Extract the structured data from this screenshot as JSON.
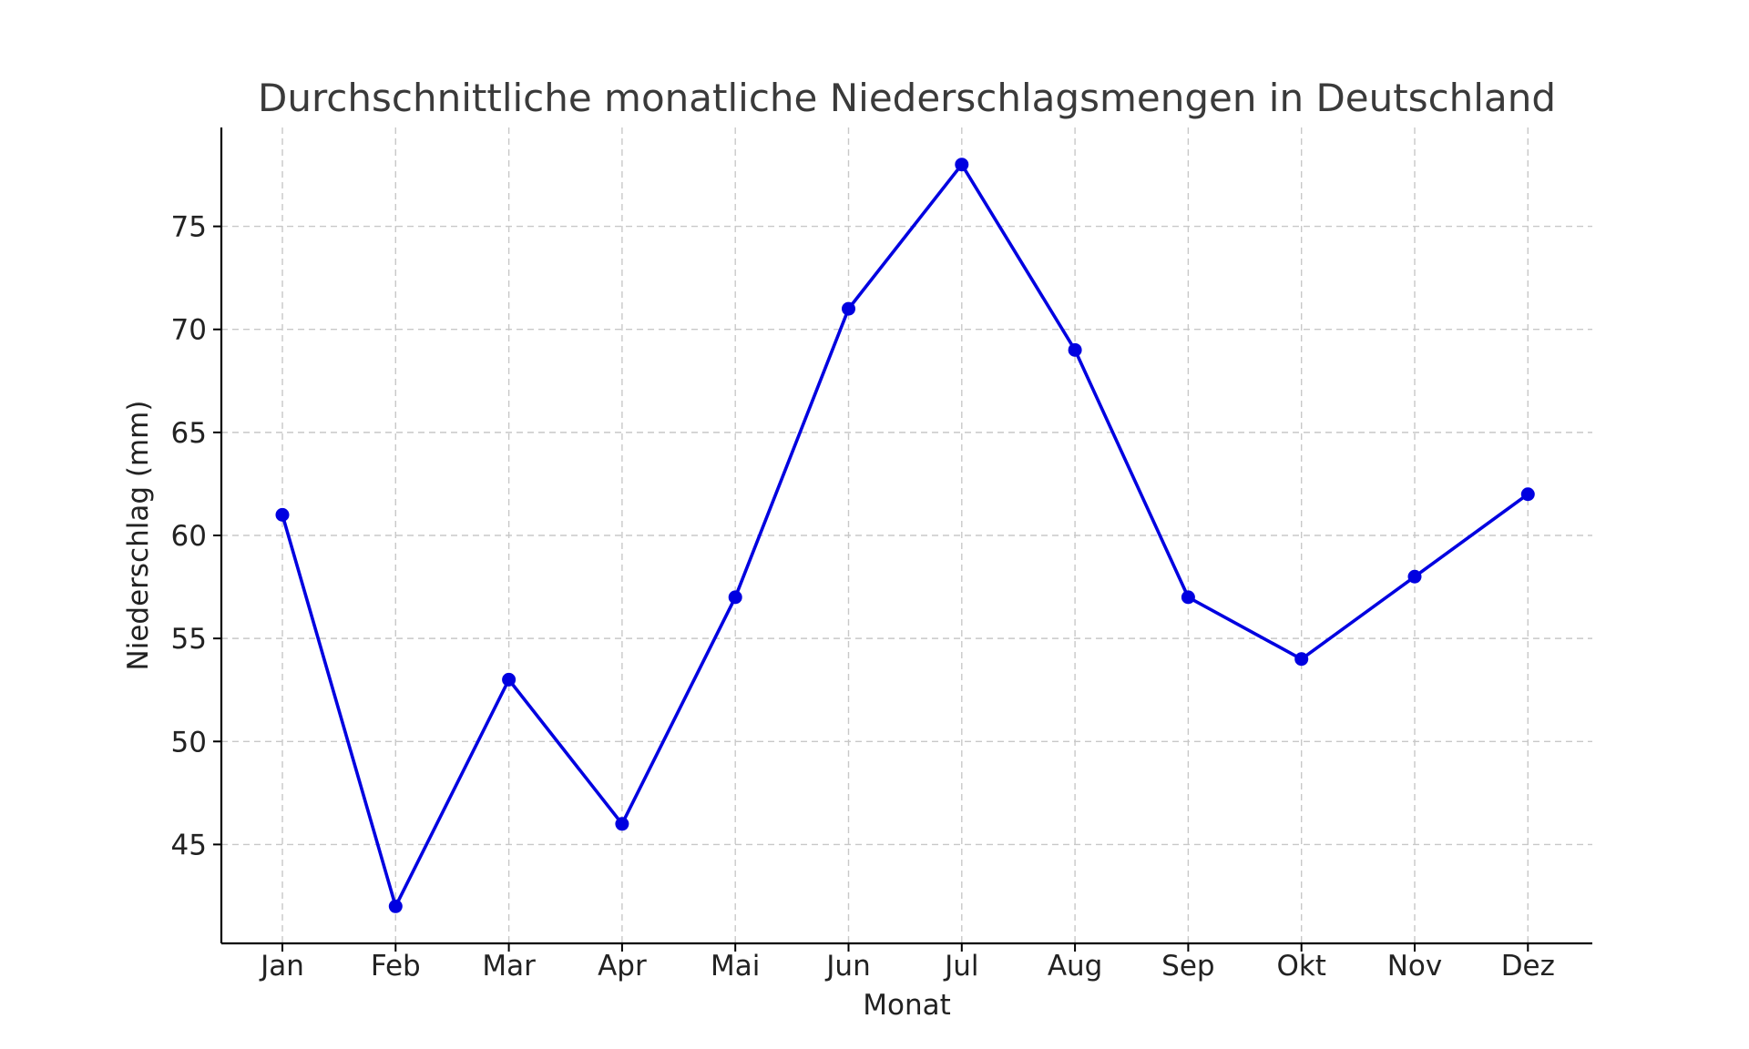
{
  "chart_data": {
    "type": "line",
    "title": "Durchschnittliche monatliche Niederschlagsmengen in Deutschland",
    "xlabel": "Monat",
    "ylabel": "Niederschlag (mm)",
    "categories": [
      "Jan",
      "Feb",
      "Mar",
      "Apr",
      "Mai",
      "Jun",
      "Jul",
      "Aug",
      "Sep",
      "Okt",
      "Nov",
      "Dez"
    ],
    "series": [
      {
        "values": [
          61,
          42,
          53,
          46,
          57,
          71,
          78,
          69,
          57,
          54,
          58,
          62
        ],
        "color": "#0000e0",
        "marker": "circle"
      }
    ],
    "ylim": [
      40.2,
      79.8
    ],
    "yticks": [
      45,
      50,
      55,
      60,
      65,
      70,
      75
    ],
    "grid": true,
    "grid_style": "dashed",
    "legend": "none"
  }
}
